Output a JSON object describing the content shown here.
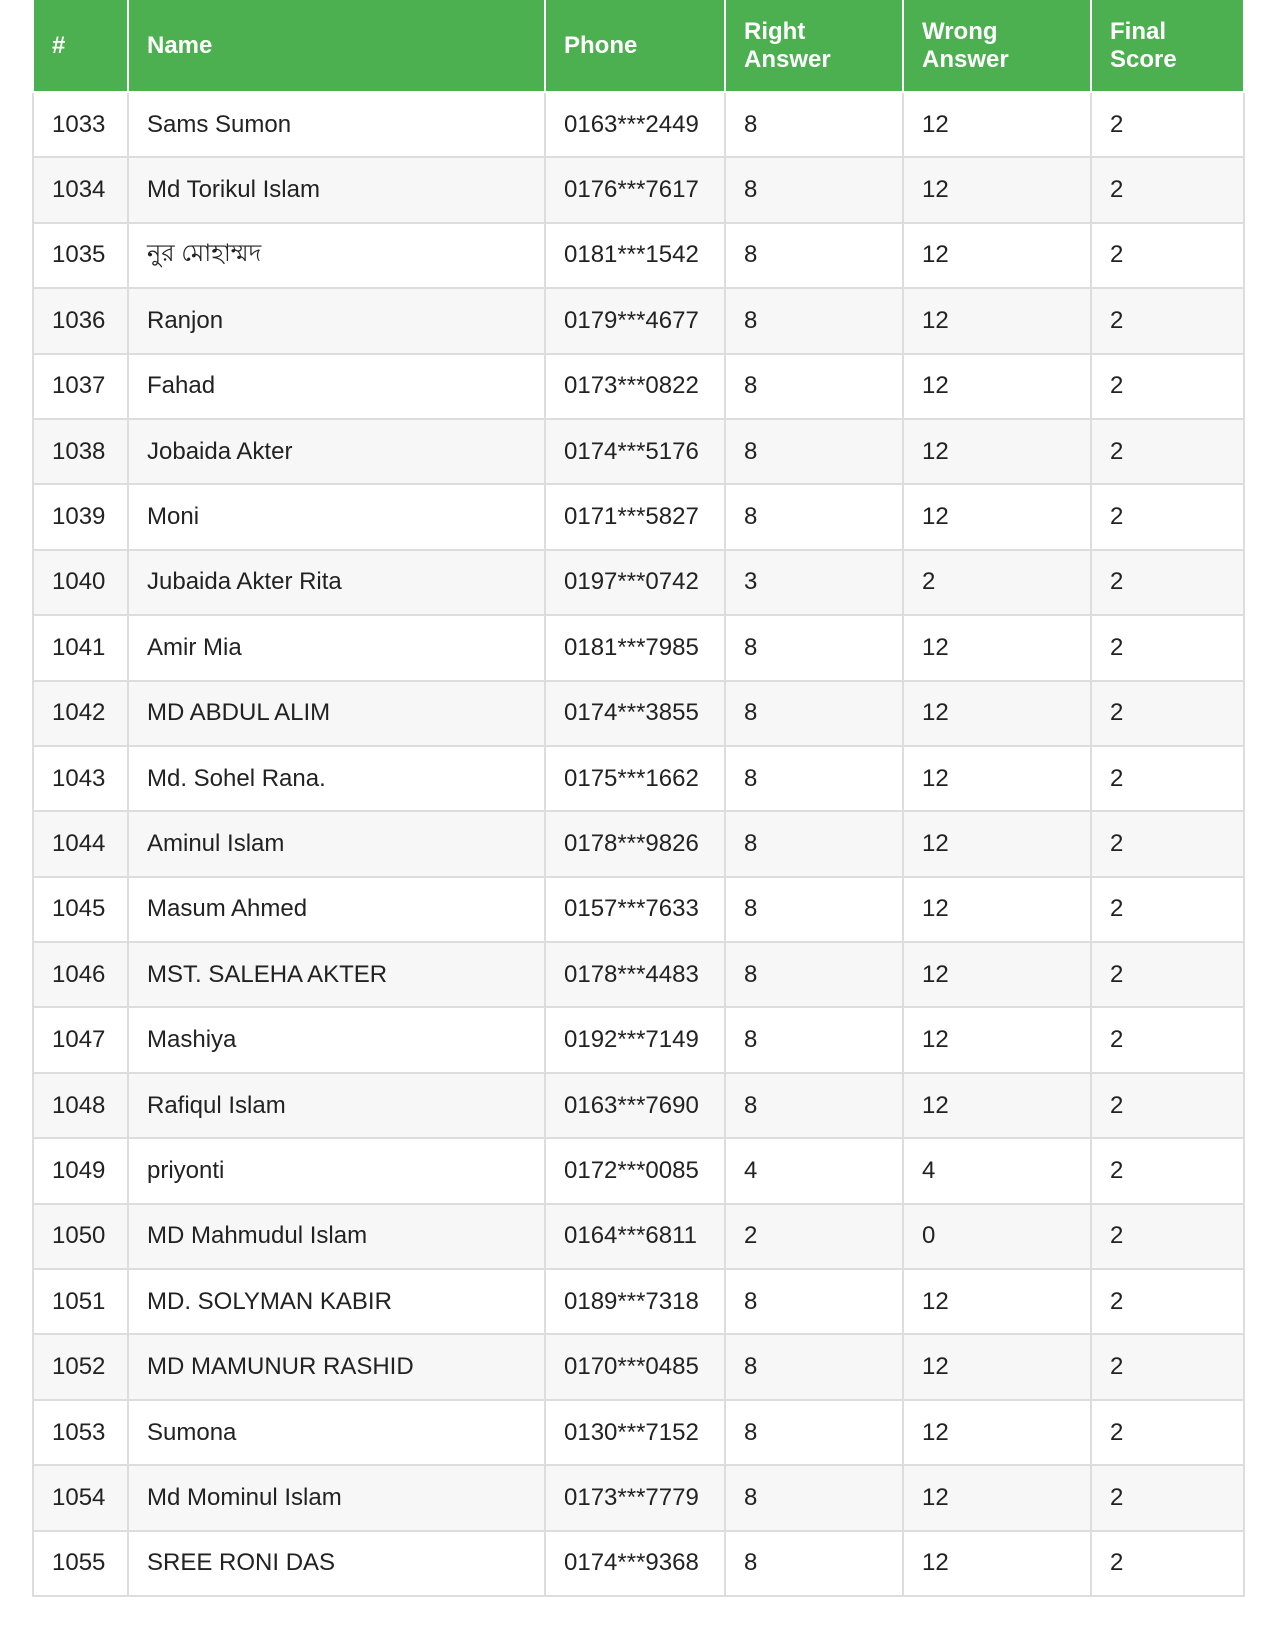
{
  "table": {
    "header": [
      "#",
      "Name",
      "Phone",
      "Right Answer",
      "Wrong Answer",
      "Final Score"
    ],
    "rows": [
      [
        1033,
        "Sams Sumon",
        "0163***2449",
        8,
        12,
        2
      ],
      [
        1034,
        "Md Torikul Islam",
        "0176***7617",
        8,
        12,
        2
      ],
      [
        1035,
        "নুর মোহাম্মদ",
        "0181***1542",
        8,
        12,
        2
      ],
      [
        1036,
        "Ranjon",
        "0179***4677",
        8,
        12,
        2
      ],
      [
        1037,
        "Fahad",
        "0173***0822",
        8,
        12,
        2
      ],
      [
        1038,
        "Jobaida Akter",
        "0174***5176",
        8,
        12,
        2
      ],
      [
        1039,
        "Moni",
        "0171***5827",
        8,
        12,
        2
      ],
      [
        1040,
        "Jubaida Akter Rita",
        "0197***0742",
        3,
        2,
        2
      ],
      [
        1041,
        "Amir Mia",
        "0181***7985",
        8,
        12,
        2
      ],
      [
        1042,
        "MD ABDUL ALIM",
        "0174***3855",
        8,
        12,
        2
      ],
      [
        1043,
        "Md. Sohel Rana.",
        "0175***1662",
        8,
        12,
        2
      ],
      [
        1044,
        "Aminul Islam",
        "0178***9826",
        8,
        12,
        2
      ],
      [
        1045,
        "Masum Ahmed",
        "0157***7633",
        8,
        12,
        2
      ],
      [
        1046,
        "MST. SALEHA AKTER",
        "0178***4483",
        8,
        12,
        2
      ],
      [
        1047,
        "Mashiya",
        "0192***7149",
        8,
        12,
        2
      ],
      [
        1048,
        "Rafiqul Islam",
        "0163***7690",
        8,
        12,
        2
      ],
      [
        1049,
        "priyonti",
        "0172***0085",
        4,
        4,
        2
      ],
      [
        1050,
        "MD Mahmudul Islam",
        "0164***6811",
        2,
        0,
        2
      ],
      [
        1051,
        "MD. SOLYMAN KABIR",
        "0189***7318",
        8,
        12,
        2
      ],
      [
        1052,
        "MD MAMUNUR RASHID",
        "0170***0485",
        8,
        12,
        2
      ],
      [
        1053,
        "Sumona",
        "0130***7152",
        8,
        12,
        2
      ],
      [
        1054,
        "Md Mominul Islam",
        "0173***7779",
        8,
        12,
        2
      ],
      [
        1055,
        "SREE RONI DAS",
        "0174***9368",
        8,
        12,
        2
      ]
    ]
  }
}
